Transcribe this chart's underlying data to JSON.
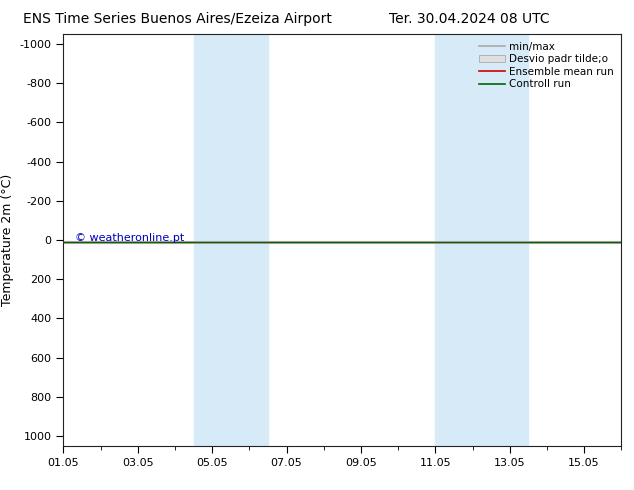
{
  "title_left": "ENS Time Series Buenos Aires/Ezeiza Airport",
  "title_right": "Ter. 30.04.2024 08 UTC",
  "ylabel": "Temperature 2m (°C)",
  "ylim_top": -1050,
  "ylim_bottom": 1050,
  "yticks": [
    -1000,
    -800,
    -600,
    -400,
    -200,
    0,
    200,
    400,
    600,
    800,
    1000
  ],
  "xlim": [
    0,
    15
  ],
  "xtick_positions": [
    0,
    2,
    4,
    6,
    8,
    10,
    12,
    14
  ],
  "xtick_labels": [
    "01.05",
    "03.05",
    "05.05",
    "07.05",
    "09.05",
    "11.05",
    "13.05",
    "15.05"
  ],
  "shaded_bands": [
    {
      "xmin": 3.5,
      "xmax": 5.5
    },
    {
      "xmin": 10.0,
      "xmax": 12.5
    }
  ],
  "shade_color": "#d6eaf8",
  "line_y_ensemble": 10,
  "line_y_control": 10,
  "ensemble_mean_color": "#cc0000",
  "control_run_color": "#006600",
  "minmax_color": "#aaaaaa",
  "std_fill_color": "#dddddd",
  "watermark_text": "© weatheronline.pt",
  "watermark_color": "#0000bb",
  "bg_color": "#ffffff",
  "legend_entries": [
    "min/max",
    "Desvio padr tilde;o",
    "Ensemble mean run",
    "Controll run"
  ],
  "title_fontsize": 10,
  "label_fontsize": 9,
  "tick_fontsize": 8,
  "legend_fontsize": 7.5
}
